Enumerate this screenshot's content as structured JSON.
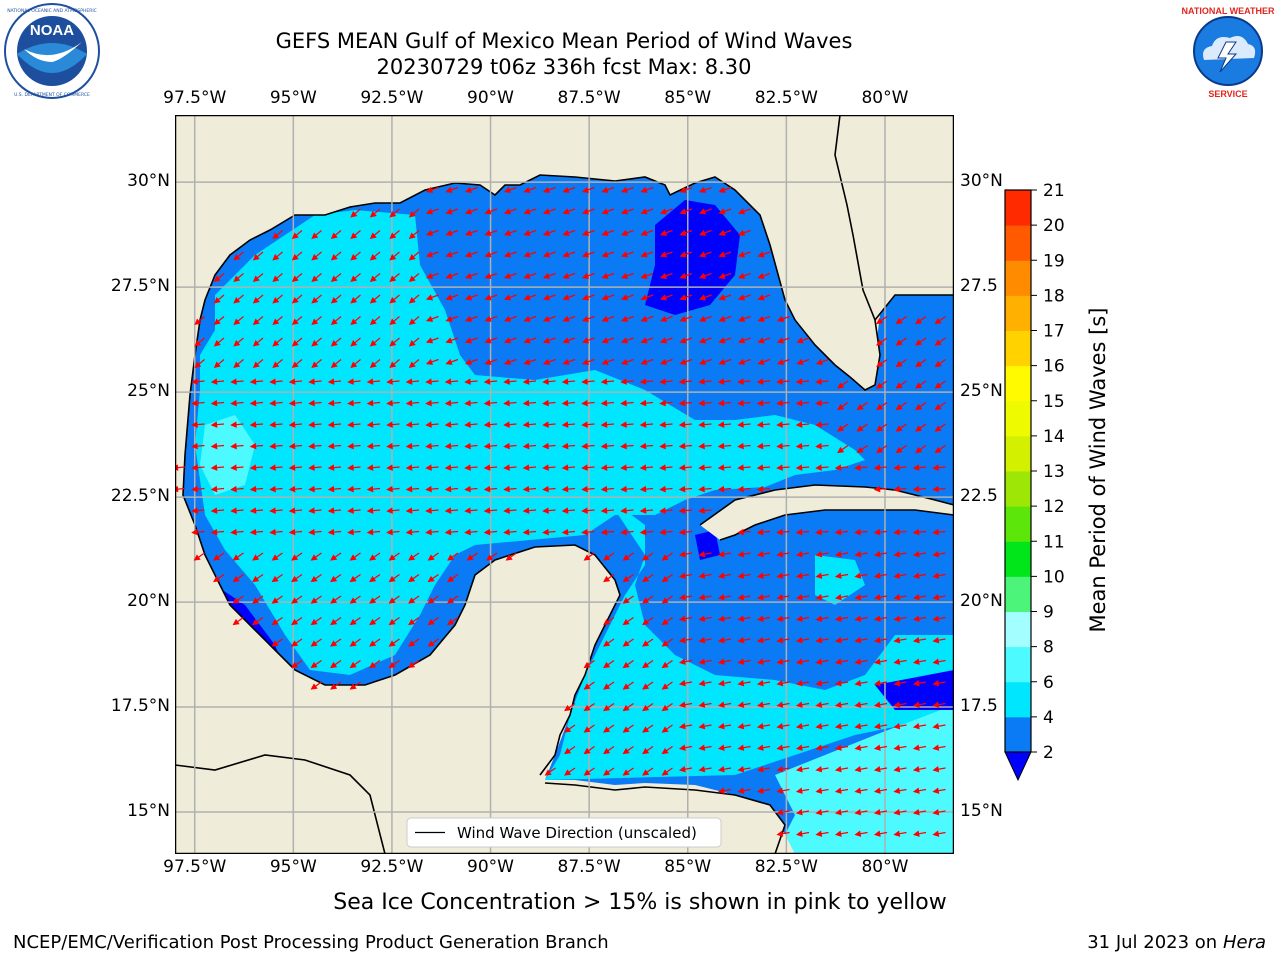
{
  "title": {
    "line1": "GEFS MEAN Gulf of Mexico Mean Period of Wind Waves",
    "line2": "20230729 t06z 336h fcst   Max: 8.30"
  },
  "logos": {
    "left": {
      "name": "NOAA",
      "ring_text": "NATIONAL OCEANIC AND ATMOSPHERIC ADMINISTRATION · U.S. DEPARTMENT OF COMMERCE",
      "colors": {
        "ring": "#ffffff",
        "inner": "#1d4f9e",
        "bird": "#ffffff"
      }
    },
    "right": {
      "name": "NATIONAL WEATHER SERVICE",
      "colors": {
        "ring": "#e0261f",
        "inner": "#1a7be0"
      }
    }
  },
  "axes": {
    "lon_ticks": [
      "97.5°W",
      "95°W",
      "92.5°W",
      "90°W",
      "87.5°W",
      "85°W",
      "82.5°W",
      "80°W"
    ],
    "lat_ticks_left": [
      "30°N",
      "27.5°N",
      "25°N",
      "22.5°N",
      "20°N",
      "17.5°N",
      "15°N"
    ],
    "lat_ticks_right": [
      "30°N",
      "27.5",
      "25°N",
      "22.5",
      "20°N",
      "17.5",
      "15°N"
    ],
    "lon_values": [
      -97.5,
      -95,
      -92.5,
      -90,
      -87.5,
      -85,
      -82.5,
      -80
    ],
    "lat_values": [
      30,
      27.5,
      25,
      22.5,
      20,
      17.5,
      15
    ],
    "extent": {
      "lon_min": -98,
      "lon_max": -78.25,
      "lat_min": 14,
      "lat_max": 31.6
    }
  },
  "legend": {
    "label": "Wind Wave Direction (unscaled)"
  },
  "colorbar": {
    "label": "Mean Period of Wind Waves [s]",
    "levels": [
      2,
      4,
      6,
      8,
      9,
      10,
      11,
      12,
      13,
      14,
      15,
      16,
      17,
      18,
      19,
      20,
      21
    ],
    "tick_labels": [
      "2",
      "4",
      "6",
      "8",
      "9",
      "10",
      "11",
      "12",
      "13",
      "14",
      "15",
      "16",
      "17",
      "18",
      "19",
      "20",
      "21"
    ],
    "colors": [
      "#0a7af5",
      "#00e6ff",
      "#4dfaff",
      "#a3ffff",
      "#4cf57a",
      "#00e61a",
      "#5de60a",
      "#9ee605",
      "#d2f000",
      "#eefa00",
      "#fffa00",
      "#ffd200",
      "#ffb000",
      "#ff8c00",
      "#ff5a00",
      "#ff2a00"
    ],
    "under_color": "#0000ff",
    "extend": "min"
  },
  "map_colors": {
    "land": "#efedd9",
    "coast": "#000000",
    "grid": "#b0b0b0",
    "arrow": "#ff0000",
    "ocean_low": "#0000ff",
    "ocean_2_4": "#0a7af5",
    "ocean_4_6": "#00e6ff",
    "ocean_6_8": "#4dfaff"
  },
  "note": "Sea Ice Concentration > 15% is shown in pink to yellow",
  "footer": {
    "left": "NCEP/EMC/Verification Post Processing Product Generation Branch",
    "date": "31 Jul 2023 on ",
    "host": "Hera"
  }
}
